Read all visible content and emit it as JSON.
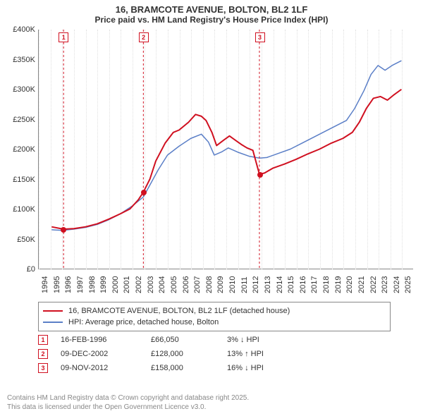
{
  "title": {
    "line1": "16, BRAMCOTE AVENUE, BOLTON, BL2 1LF",
    "line2": "Price paid vs. HM Land Registry's House Price Index (HPI)"
  },
  "chart": {
    "type": "line",
    "background_color": "#ffffff",
    "grid_color_h": "#eeeeee",
    "grid_color_v": "#e0e0e0",
    "axis_color": "#888888",
    "ylim": [
      0,
      400000
    ],
    "ytick_step": 50000,
    "ytick_labels": [
      "£0",
      "£50K",
      "£100K",
      "£150K",
      "£200K",
      "£250K",
      "£300K",
      "£350K",
      "£400K"
    ],
    "xlim_years": [
      1994,
      2026
    ],
    "xtick_years": [
      1994,
      1995,
      1996,
      1997,
      1998,
      1999,
      2000,
      2001,
      2002,
      2003,
      2004,
      2005,
      2006,
      2007,
      2008,
      2009,
      2010,
      2011,
      2012,
      2013,
      2014,
      2015,
      2016,
      2017,
      2018,
      2019,
      2020,
      2021,
      2022,
      2023,
      2024,
      2025
    ],
    "tick_fontsize": 11,
    "series": {
      "price": {
        "label": "16, BRAMCOTE AVENUE, BOLTON, BL2 1LF (detached house)",
        "color": "#d01020",
        "line_width": 2,
        "points": [
          [
            1995.1,
            70000
          ],
          [
            1996.12,
            66050
          ],
          [
            1997.0,
            67000
          ],
          [
            1998.0,
            70000
          ],
          [
            1999.0,
            75000
          ],
          [
            2000.0,
            83000
          ],
          [
            2001.0,
            92000
          ],
          [
            2001.8,
            100000
          ],
          [
            2002.5,
            115000
          ],
          [
            2002.94,
            128000
          ],
          [
            2003.5,
            150000
          ],
          [
            2004.0,
            180000
          ],
          [
            2004.8,
            210000
          ],
          [
            2005.5,
            228000
          ],
          [
            2006.0,
            232000
          ],
          [
            2006.8,
            245000
          ],
          [
            2007.4,
            258000
          ],
          [
            2007.9,
            255000
          ],
          [
            2008.3,
            248000
          ],
          [
            2008.8,
            228000
          ],
          [
            2009.2,
            206000
          ],
          [
            2009.8,
            215000
          ],
          [
            2010.3,
            222000
          ],
          [
            2010.8,
            215000
          ],
          [
            2011.3,
            208000
          ],
          [
            2011.8,
            202000
          ],
          [
            2012.3,
            198000
          ],
          [
            2012.86,
            158000
          ],
          [
            2013.3,
            160000
          ],
          [
            2014.0,
            168000
          ],
          [
            2015.0,
            175000
          ],
          [
            2016.0,
            183000
          ],
          [
            2017.0,
            192000
          ],
          [
            2018.0,
            200000
          ],
          [
            2019.0,
            210000
          ],
          [
            2020.0,
            218000
          ],
          [
            2020.8,
            228000
          ],
          [
            2021.4,
            245000
          ],
          [
            2022.0,
            268000
          ],
          [
            2022.6,
            285000
          ],
          [
            2023.2,
            288000
          ],
          [
            2023.8,
            282000
          ],
          [
            2024.3,
            290000
          ],
          [
            2025.0,
            300000
          ]
        ]
      },
      "hpi": {
        "label": "HPI: Average price, detached house, Bolton",
        "color": "#5b7fc7",
        "line_width": 1.5,
        "points": [
          [
            1995.1,
            65000
          ],
          [
            1996.0,
            64000
          ],
          [
            1997.0,
            66000
          ],
          [
            1998.0,
            69000
          ],
          [
            1999.0,
            74000
          ],
          [
            2000.0,
            82000
          ],
          [
            2001.0,
            92000
          ],
          [
            2002.0,
            105000
          ],
          [
            2002.94,
            120000
          ],
          [
            2003.5,
            140000
          ],
          [
            2004.2,
            165000
          ],
          [
            2005.0,
            190000
          ],
          [
            2006.0,
            205000
          ],
          [
            2007.0,
            218000
          ],
          [
            2007.9,
            225000
          ],
          [
            2008.5,
            212000
          ],
          [
            2009.0,
            190000
          ],
          [
            2009.6,
            195000
          ],
          [
            2010.2,
            202000
          ],
          [
            2011.0,
            195000
          ],
          [
            2012.0,
            188000
          ],
          [
            2012.86,
            185000
          ],
          [
            2013.5,
            186000
          ],
          [
            2014.5,
            193000
          ],
          [
            2015.5,
            200000
          ],
          [
            2016.5,
            210000
          ],
          [
            2017.5,
            220000
          ],
          [
            2018.5,
            230000
          ],
          [
            2019.5,
            240000
          ],
          [
            2020.3,
            248000
          ],
          [
            2021.0,
            268000
          ],
          [
            2021.8,
            298000
          ],
          [
            2022.4,
            325000
          ],
          [
            2023.0,
            340000
          ],
          [
            2023.6,
            332000
          ],
          [
            2024.2,
            340000
          ],
          [
            2025.0,
            348000
          ]
        ]
      }
    },
    "sale_markers": [
      {
        "n": "1",
        "year": 1996.12,
        "price": 66050,
        "color": "#d01020"
      },
      {
        "n": "2",
        "year": 2002.94,
        "price": 128000,
        "color": "#d01020"
      },
      {
        "n": "3",
        "year": 2012.86,
        "price": 158000,
        "color": "#d01020"
      }
    ]
  },
  "legend": {
    "rows": [
      {
        "color": "#d01020",
        "label": "16, BRAMCOTE AVENUE, BOLTON, BL2 1LF (detached house)"
      },
      {
        "color": "#5b7fc7",
        "label": "HPI: Average price, detached house, Bolton"
      }
    ]
  },
  "sales_table": {
    "rows": [
      {
        "n": "1",
        "marker_color": "#d01020",
        "date": "16-FEB-1996",
        "price": "£66,050",
        "pct": "3% ↓ HPI"
      },
      {
        "n": "2",
        "marker_color": "#d01020",
        "date": "09-DEC-2002",
        "price": "£128,000",
        "pct": "13% ↑ HPI"
      },
      {
        "n": "3",
        "marker_color": "#d01020",
        "date": "09-NOV-2012",
        "price": "£158,000",
        "pct": "16% ↓ HPI"
      }
    ]
  },
  "attribution": {
    "line1": "Contains HM Land Registry data © Crown copyright and database right 2025.",
    "line2": "This data is licensed under the Open Government Licence v3.0."
  }
}
